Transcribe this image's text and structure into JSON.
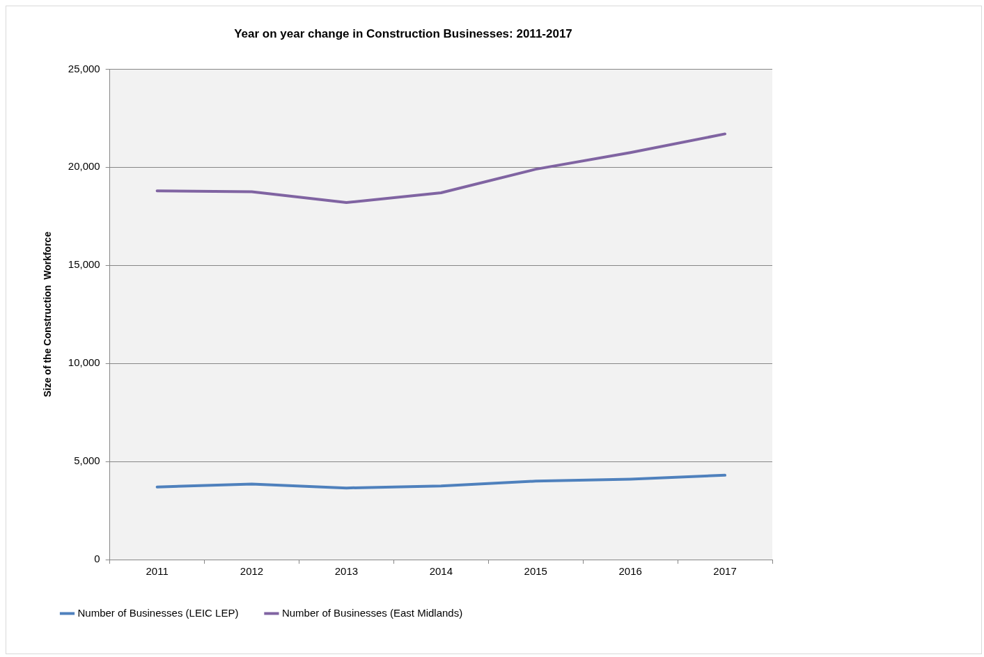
{
  "chart_data": {
    "type": "line",
    "title": "Year on year change in Construction Businesses: 2011-2017",
    "ylabel": "Size of the Construction  Workforce",
    "categories": [
      "2011",
      "2012",
      "2013",
      "2014",
      "2015",
      "2016",
      "2017"
    ],
    "series": [
      {
        "name": "Number of Businesses (LEIC LEP)",
        "color": "#4f81bd",
        "values": [
          3700,
          3850,
          3650,
          3750,
          4000,
          4100,
          4300
        ]
      },
      {
        "name": "Number of Businesses (East Midlands)",
        "color": "#8064a2",
        "values": [
          18800,
          18750,
          18200,
          18700,
          19900,
          20750,
          21700
        ]
      }
    ],
    "ylim": [
      0,
      25000
    ],
    "yticks": [
      {
        "value": 0,
        "label": "0"
      },
      {
        "value": 5000,
        "label": "5,000"
      },
      {
        "value": 10000,
        "label": "10,000"
      },
      {
        "value": 15000,
        "label": "15,000"
      },
      {
        "value": 20000,
        "label": "20,000"
      },
      {
        "value": 25000,
        "label": "25,000"
      }
    ],
    "grid": "y",
    "legend": "bottom",
    "marker": "none",
    "line_style": "solid"
  }
}
